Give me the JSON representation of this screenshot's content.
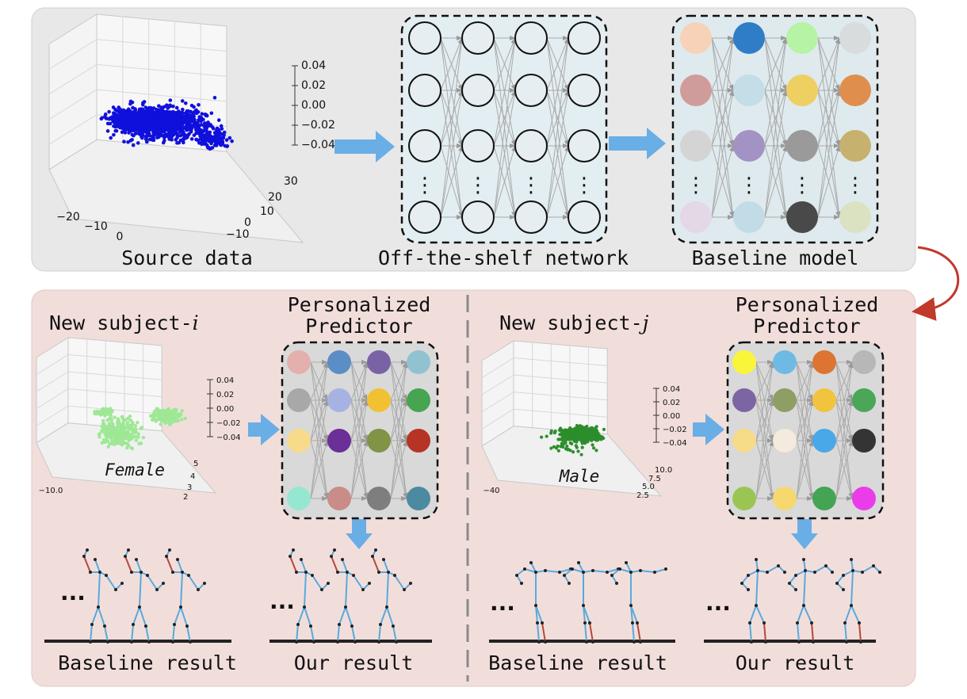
{
  "top_panel": {
    "source_data": {
      "caption": "Source data",
      "z_ticks": [
        "0.04",
        "0.02",
        "0.00",
        "−0.02",
        "−0.04"
      ],
      "x_ticks": [
        "−20",
        "−10",
        "0"
      ],
      "y_ticks": [
        "30",
        "20",
        "10",
        "0",
        "−10"
      ],
      "point_color": "#1010dd"
    },
    "offshelf_network": {
      "caption": "Off-the-shelf network",
      "ellipsis": "⋮"
    },
    "baseline_model": {
      "caption": "Baseline model",
      "ellipsis": "⋮",
      "node_colors": [
        [
          "#f7d2b8",
          "#2f7dc6",
          "#b6f3a5",
          "#d9dcdc"
        ],
        [
          "#d09c9b",
          "#c4dde6",
          "#eecf61",
          "#e08e4e"
        ],
        [
          "#d4d4d4",
          "#a393c4",
          "#9a9a9a",
          "#c7b16f"
        ],
        [
          "#e4d7e6",
          "#c1dce6",
          "#494949",
          "#dae2c2"
        ]
      ]
    }
  },
  "bottom_panel": {
    "subject_i": {
      "title": "New subject-",
      "index": "i",
      "gender": "Female",
      "point_color": "#9ee895",
      "z_ticks": [
        "0.04",
        "0.02",
        "0.00",
        "−0.02",
        "−0.04"
      ],
      "x_ticks": [
        "−10.0"
      ],
      "y_ticks": [
        "5",
        "4",
        "3",
        "2"
      ],
      "predictor_title": [
        "Personalized",
        "Predictor"
      ],
      "node_colors": [
        [
          "#e3b0ae",
          "#5b8ec4",
          "#7a63a5",
          "#91c2cf"
        ],
        [
          "#a8a8a8",
          "#a6b2e2",
          "#f2c033",
          "#47a552"
        ],
        [
          "#f7db8b",
          "#6b2f98",
          "#7f9444",
          "#b63425"
        ],
        [
          "#95e7d2",
          "#c98c88",
          "#7e7e7e",
          "#4b8aa1"
        ]
      ],
      "baseline_caption": "Baseline result",
      "our_caption": "Our result",
      "dots": "..."
    },
    "subject_j": {
      "title": "New subject-",
      "index": "j",
      "gender": "Male",
      "point_color": "#2c8d2c",
      "z_ticks": [
        "0.04",
        "0.02",
        "0.00",
        "−0.02",
        "−0.04"
      ],
      "x_ticks": [
        "−40"
      ],
      "y_ticks": [
        "10.0",
        "7.5",
        "5.0",
        "2.5"
      ],
      "predictor_title": [
        "Personalized",
        "Predictor"
      ],
      "node_colors": [
        [
          "#f8f53b",
          "#6ebae4",
          "#dd7431",
          "#b7b7b7"
        ],
        [
          "#7b66a3",
          "#8e9e64",
          "#f2c33d",
          "#4ba659"
        ],
        [
          "#f6db89",
          "#f4eade",
          "#48a8e8",
          "#343434"
        ],
        [
          "#9bc553",
          "#f6d86e",
          "#43a554",
          "#ea3de9"
        ]
      ],
      "baseline_caption": "Baseline result",
      "our_caption": "Our result",
      "dots": "..."
    }
  },
  "colors": {
    "top_bg": "#e8e8e8",
    "bottom_bg": "#f1dedb",
    "arrow_blue": "#6aaee6",
    "link_red": "#c0392b",
    "skeleton_blue": "#5aa9dc",
    "skeleton_red": "#b5483a"
  }
}
